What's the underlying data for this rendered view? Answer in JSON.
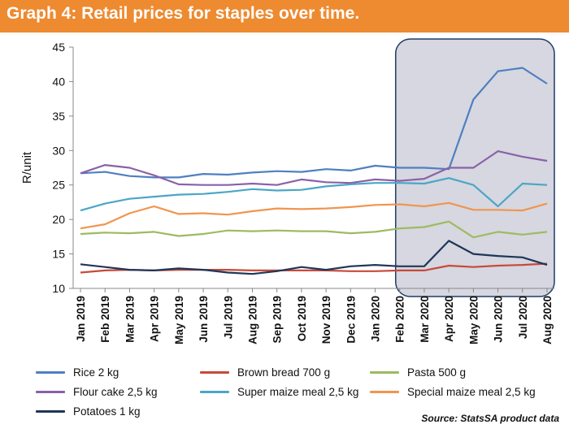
{
  "header": {
    "title": "Graph 4: Retail prices for staples over time."
  },
  "source": "Source: StatsSA product data",
  "colors": {
    "header_bg": "#ee8a2f",
    "highlight_fill": "#d6d7e0",
    "highlight_border": "#1f3c68"
  },
  "chart_data": {
    "type": "line",
    "ylabel": "R/unit",
    "ylim": [
      10,
      45
    ],
    "yticks": [
      10,
      15,
      20,
      25,
      30,
      35,
      40,
      45
    ],
    "grid": false,
    "legend_position": "bottom",
    "categories": [
      "Jan 2019",
      "Feb 2019",
      "Mar 2019",
      "Apr 2019",
      "May 2019",
      "Jun 2019",
      "Jul 2019",
      "Aug 2019",
      "Sep 2019",
      "Oct 2019",
      "Nov 2019",
      "Dec 2019",
      "Jan 2020",
      "Feb 2020",
      "Mar 2020",
      "Apr 2020",
      "May 2020",
      "Jun 2020",
      "Jul 2020",
      "Aug 2020"
    ],
    "highlight_range": [
      "Feb 2020",
      "Aug 2020"
    ],
    "series": [
      {
        "name": "Rice 2 kg",
        "color": "#4f7fc2",
        "values": [
          26.7,
          26.9,
          26.3,
          26.1,
          26.1,
          26.6,
          26.5,
          26.8,
          27.0,
          26.9,
          27.3,
          27.1,
          27.8,
          27.5,
          27.5,
          27.3,
          37.4,
          41.5,
          42.0,
          39.7
        ]
      },
      {
        "name": "Brown bread 700 g",
        "color": "#c8493a",
        "values": [
          12.3,
          12.6,
          12.7,
          12.6,
          12.7,
          12.7,
          12.7,
          12.6,
          12.6,
          12.6,
          12.6,
          12.5,
          12.5,
          12.6,
          12.6,
          13.3,
          13.1,
          13.3,
          13.4,
          13.6
        ]
      },
      {
        "name": "Pasta 500 g",
        "color": "#9dbb61",
        "values": [
          17.9,
          18.1,
          18.0,
          18.2,
          17.6,
          17.9,
          18.4,
          18.3,
          18.4,
          18.3,
          18.3,
          18.0,
          18.2,
          18.7,
          18.9,
          19.7,
          17.4,
          18.2,
          17.8,
          18.2
        ]
      },
      {
        "name": "Flour cake 2,5 kg",
        "color": "#8a61a8",
        "values": [
          26.7,
          27.9,
          27.5,
          26.4,
          25.1,
          25.0,
          25.0,
          25.2,
          25.0,
          25.8,
          25.4,
          25.3,
          25.8,
          25.6,
          25.9,
          27.5,
          27.5,
          29.9,
          29.1,
          28.5
        ]
      },
      {
        "name": "Super maize meal 2,5 kg",
        "color": "#4ba6c6",
        "values": [
          21.3,
          22.3,
          23.0,
          23.3,
          23.6,
          23.7,
          24.0,
          24.4,
          24.2,
          24.3,
          24.8,
          25.1,
          25.3,
          25.3,
          25.2,
          26.0,
          25.0,
          21.9,
          25.2,
          25.0
        ]
      },
      {
        "name": "Special maize meal 2,5 kg",
        "color": "#f0954f",
        "values": [
          18.7,
          19.3,
          20.9,
          21.9,
          20.8,
          20.9,
          20.7,
          21.2,
          21.6,
          21.5,
          21.6,
          21.8,
          22.1,
          22.2,
          21.9,
          22.4,
          21.4,
          21.4,
          21.3,
          22.3
        ]
      },
      {
        "name": "Potatoes 1 kg",
        "color": "#1f3658",
        "values": [
          13.5,
          13.1,
          12.7,
          12.6,
          12.9,
          12.7,
          12.3,
          12.1,
          12.5,
          13.1,
          12.7,
          13.2,
          13.4,
          13.2,
          13.2,
          16.9,
          15.0,
          14.7,
          14.5,
          13.4
        ]
      }
    ]
  }
}
